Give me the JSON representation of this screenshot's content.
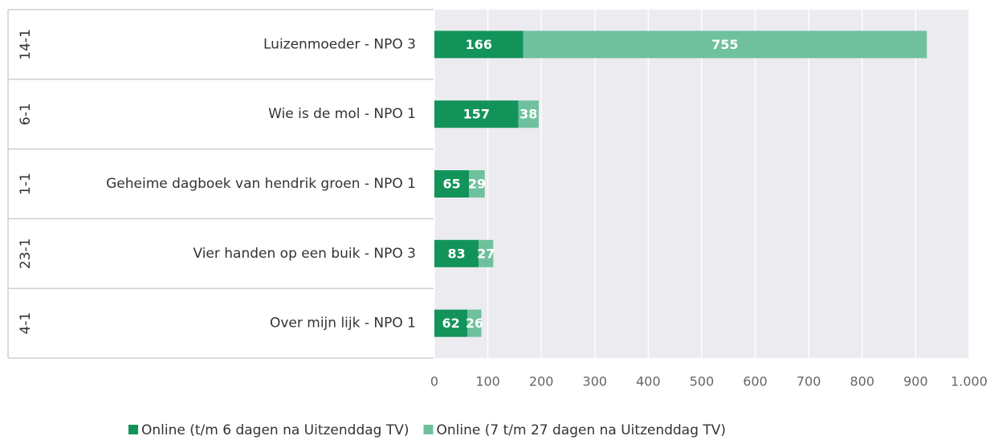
{
  "chart_data": {
    "type": "stacked_barh",
    "categories": [
      "Luizenmoeder - NPO 3",
      "Wie is de mol - NPO 1",
      "Geheime dagboek van hendrik groen - NPO 1",
      "Vier handen op een buik - NPO 3",
      "Over mijn lijk - NPO 1"
    ],
    "date_labels": [
      "14-1",
      "6-1",
      "1-1",
      "23-1",
      "4-1"
    ],
    "series": [
      {
        "name": "Online (t/m 6 dagen na Uitzenddag TV)",
        "color": "#12935a",
        "values": [
          166,
          157,
          65,
          83,
          62
        ]
      },
      {
        "name": "Online (7 t/m 27 dagen na Uitzenddag TV)",
        "color": "#6fc19e",
        "values": [
          755,
          38,
          29,
          27,
          26
        ]
      }
    ],
    "xlim": [
      0,
      1000
    ],
    "xticks": [
      0,
      100,
      200,
      300,
      400,
      500,
      600,
      700,
      800,
      900,
      {
        "value": 1000,
        "label": "1.000"
      }
    ],
    "grid": true,
    "legend": "bottom"
  }
}
